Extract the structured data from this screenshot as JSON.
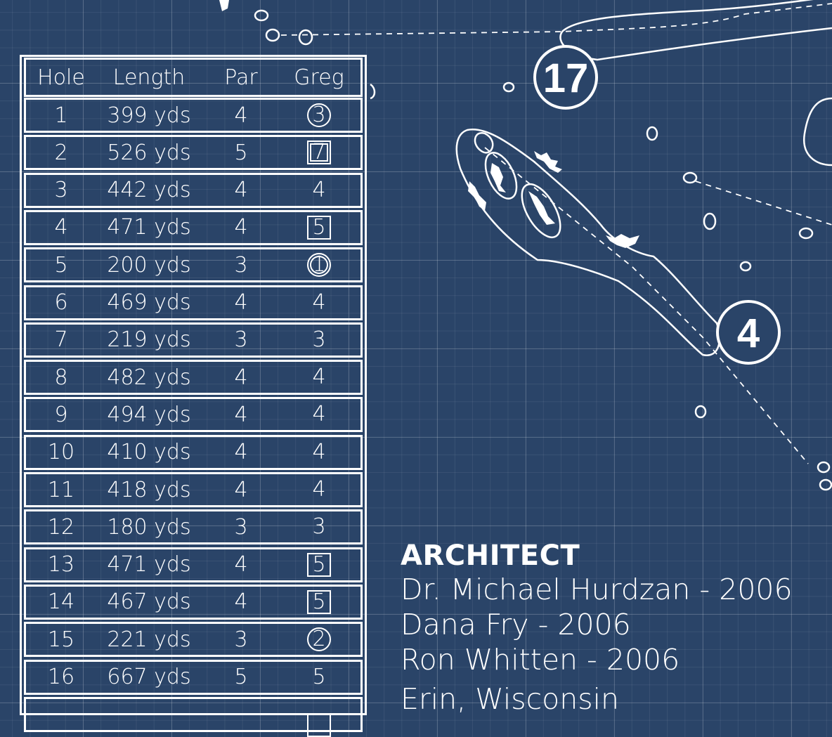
{
  "scorecard": {
    "headers": {
      "hole": "Hole",
      "length": "Length",
      "par": "Par",
      "player": "Greg"
    },
    "rows": [
      {
        "hole": "1",
        "length": "399 yds",
        "par": "4",
        "score": "3",
        "mark": "circle"
      },
      {
        "hole": "2",
        "length": "526 yds",
        "par": "5",
        "score": "7",
        "mark": "double-square"
      },
      {
        "hole": "3",
        "length": "442 yds",
        "par": "4",
        "score": "4",
        "mark": "none"
      },
      {
        "hole": "4",
        "length": "471 yds",
        "par": "4",
        "score": "5",
        "mark": "square"
      },
      {
        "hole": "5",
        "length": "200 yds",
        "par": "3",
        "score": "1",
        "mark": "double-circle"
      },
      {
        "hole": "6",
        "length": "469 yds",
        "par": "4",
        "score": "4",
        "mark": "none"
      },
      {
        "hole": "7",
        "length": "219 yds",
        "par": "3",
        "score": "3",
        "mark": "none"
      },
      {
        "hole": "8",
        "length": "482 yds",
        "par": "4",
        "score": "4",
        "mark": "none"
      },
      {
        "hole": "9",
        "length": "494 yds",
        "par": "4",
        "score": "4",
        "mark": "none"
      },
      {
        "hole": "10",
        "length": "410 yds",
        "par": "4",
        "score": "4",
        "mark": "none"
      },
      {
        "hole": "11",
        "length": "418 yds",
        "par": "4",
        "score": "4",
        "mark": "none"
      },
      {
        "hole": "12",
        "length": "180 yds",
        "par": "3",
        "score": "3",
        "mark": "none"
      },
      {
        "hole": "13",
        "length": "471 yds",
        "par": "4",
        "score": "5",
        "mark": "square"
      },
      {
        "hole": "14",
        "length": "467 yds",
        "par": "4",
        "score": "5",
        "mark": "square"
      },
      {
        "hole": "15",
        "length": "221 yds",
        "par": "3",
        "score": "2",
        "mark": "circle"
      },
      {
        "hole": "16",
        "length": "667 yds",
        "par": "5",
        "score": "5",
        "mark": "none"
      }
    ]
  },
  "map": {
    "hole_labels": [
      "17",
      "4"
    ]
  },
  "architect": {
    "title": "ARCHITECT",
    "lines": [
      "Dr. Michael Hurdzan  -  2006",
      "Dana Fry  -  2006",
      "Ron Whitten  -  2006"
    ],
    "location": "Erin, Wisconsin"
  },
  "colors": {
    "background": "#2a4468",
    "ink": "#ffffff"
  }
}
